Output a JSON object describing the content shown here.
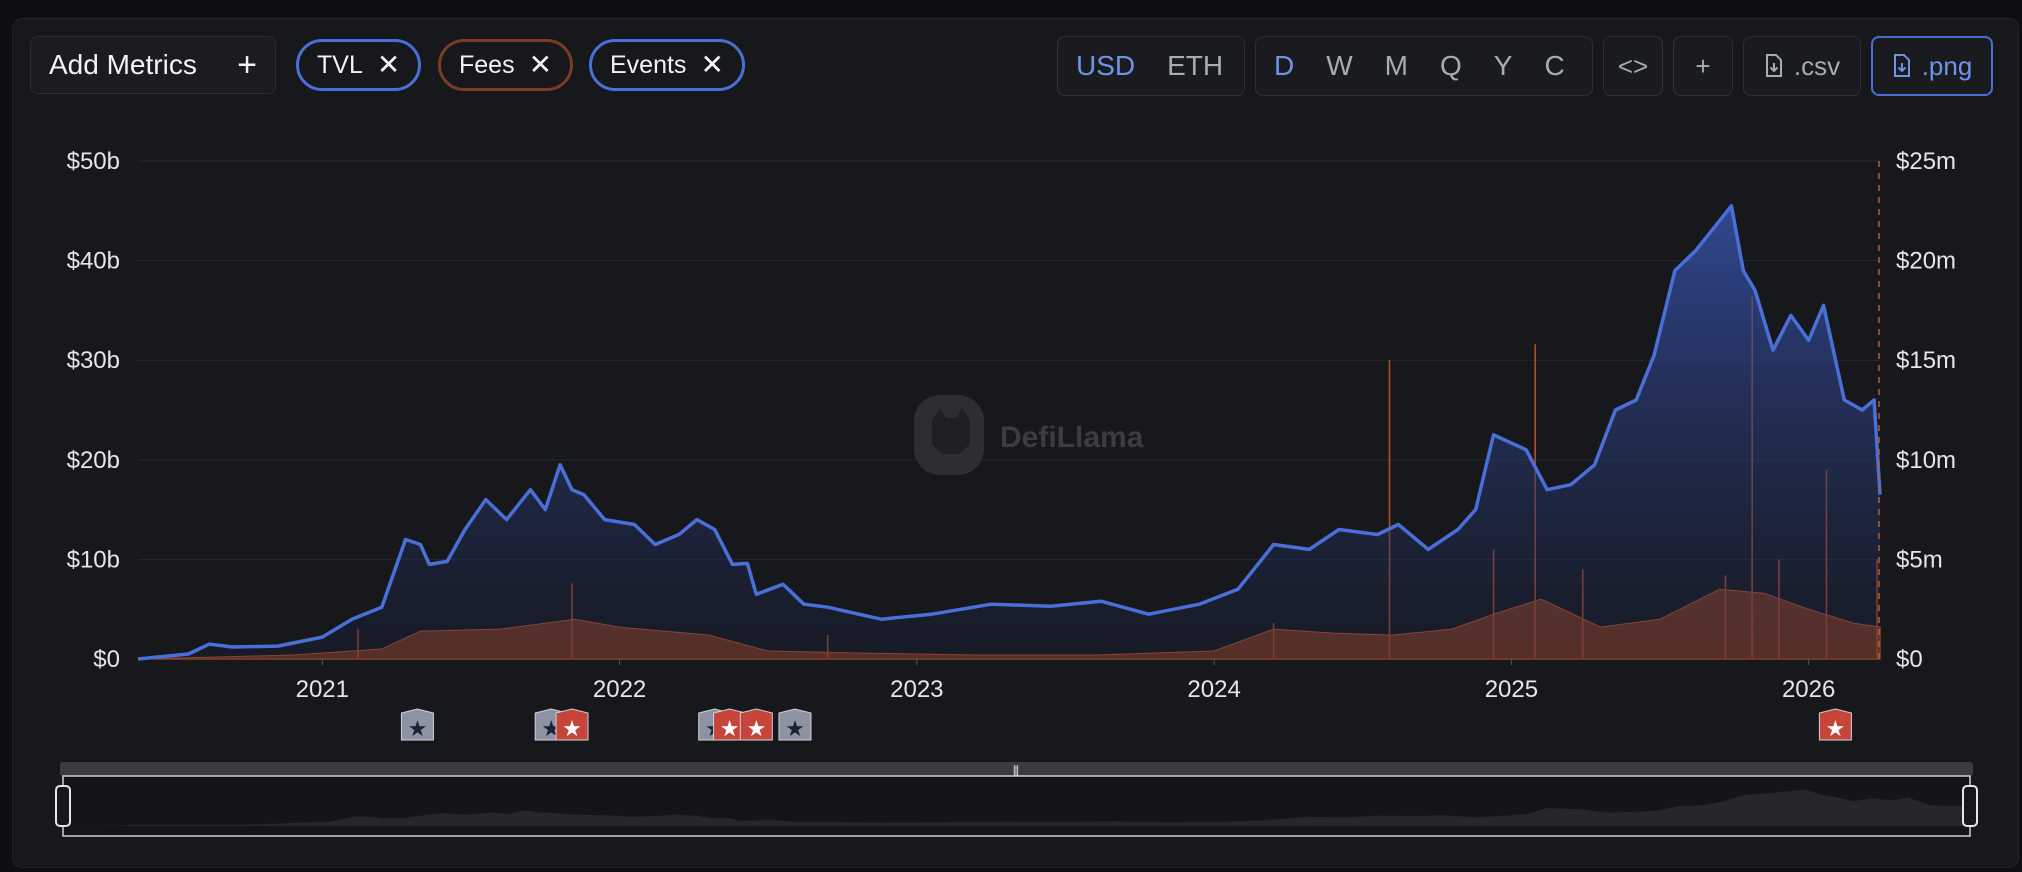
{
  "toolbar": {
    "add_metrics_label": "Add Metrics",
    "add_metrics_icon": "plus-icon",
    "metric_pills": [
      {
        "label": "TVL",
        "color": "#4a6fd9"
      },
      {
        "label": "Fees",
        "color": "#7a3d24"
      },
      {
        "label": "Events",
        "color": "#4a6fd9"
      }
    ],
    "currency": {
      "options": [
        "USD",
        "ETH"
      ],
      "selected": "USD"
    },
    "intervals": {
      "options": [
        "D",
        "W",
        "M",
        "Q",
        "Y",
        "C"
      ],
      "selected": "D"
    },
    "embed_label": "<>",
    "add_label": "+",
    "csv_label": ".csv",
    "png_label": ".png",
    "accent": "#6f93e8"
  },
  "watermark": "DefiLlama",
  "events_markers": [
    {
      "date": 2021.32,
      "kind": "gray"
    },
    {
      "date": 2021.77,
      "kind": "gray"
    },
    {
      "date": 2021.84,
      "kind": "red"
    },
    {
      "date": 2022.32,
      "kind": "gray"
    },
    {
      "date": 2022.37,
      "kind": "red"
    },
    {
      "date": 2022.46,
      "kind": "red"
    },
    {
      "date": 2022.59,
      "kind": "gray"
    },
    {
      "date": 2026.09,
      "kind": "red"
    }
  ],
  "chart_data": {
    "type": "area",
    "x_ticks": [
      "2021",
      "2022",
      "2023",
      "2024",
      "2025",
      "2026"
    ],
    "y_left_ticks": [
      "$0",
      "$10b",
      "$20b",
      "$30b",
      "$40b",
      "$50b"
    ],
    "y_right_ticks": [
      "$0",
      "$5m",
      "$10m",
      "$15m",
      "$20m",
      "$25m"
    ],
    "y_left_range": [
      0,
      50
    ],
    "y_right_range": [
      0,
      25
    ],
    "grid": true,
    "series": [
      {
        "name": "TVL",
        "axis": "left",
        "unit": "USD billions",
        "color": "#4a6fd9",
        "x": [
          2020.38,
          2020.55,
          2020.62,
          2020.7,
          2020.85,
          2021.0,
          2021.1,
          2021.2,
          2021.28,
          2021.33,
          2021.36,
          2021.42,
          2021.48,
          2021.55,
          2021.62,
          2021.7,
          2021.75,
          2021.8,
          2021.84,
          2021.88,
          2021.95,
          2022.05,
          2022.12,
          2022.2,
          2022.26,
          2022.32,
          2022.38,
          2022.43,
          2022.46,
          2022.55,
          2022.62,
          2022.7,
          2022.88,
          2023.05,
          2023.25,
          2023.45,
          2023.62,
          2023.78,
          2023.95,
          2024.08,
          2024.2,
          2024.32,
          2024.42,
          2024.55,
          2024.62,
          2024.72,
          2024.82,
          2024.88,
          2024.94,
          2025.05,
          2025.12,
          2025.2,
          2025.28,
          2025.35,
          2025.42,
          2025.48,
          2025.55,
          2025.62,
          2025.7,
          2025.74,
          2025.78,
          2025.82,
          2025.88,
          2025.94,
          2026.0,
          2026.05,
          2026.12,
          2026.18,
          2026.22,
          2026.24
        ],
        "values": [
          0,
          0.5,
          1.5,
          1.2,
          1.3,
          2.2,
          4,
          5.2,
          12,
          11.5,
          9.5,
          9.8,
          13,
          16,
          14,
          17,
          15,
          19.5,
          17,
          16.5,
          14,
          13.5,
          11.5,
          12.5,
          14,
          13,
          9.5,
          9.6,
          6.5,
          7.5,
          5.5,
          5.2,
          4,
          4.5,
          5.5,
          5.3,
          5.8,
          4.5,
          5.5,
          7,
          11.5,
          11,
          13,
          12.5,
          13.5,
          11,
          13,
          15,
          22.5,
          21,
          17,
          17.5,
          19.5,
          25,
          26,
          30.5,
          39,
          41,
          44,
          45.5,
          39,
          37,
          31,
          34.5,
          32,
          35.5,
          26,
          25,
          26,
          16.5
        ]
      },
      {
        "name": "Fees",
        "axis": "right",
        "unit": "USD millions",
        "color": "#c2582f",
        "x": [
          2020.38,
          2020.9,
          2021.2,
          2021.33,
          2021.6,
          2021.85,
          2022.0,
          2022.3,
          2022.5,
          2022.8,
          2023.2,
          2023.6,
          2024.0,
          2024.2,
          2024.4,
          2024.6,
          2024.8,
          2024.95,
          2025.1,
          2025.3,
          2025.5,
          2025.7,
          2025.85,
          2026.0,
          2026.15,
          2026.24
        ],
        "values": [
          0,
          0.2,
          0.5,
          1.4,
          1.5,
          2.0,
          1.6,
          1.2,
          0.4,
          0.3,
          0.2,
          0.2,
          0.4,
          1.5,
          1.3,
          1.2,
          1.5,
          2.3,
          3.0,
          1.6,
          2.0,
          3.5,
          3.3,
          2.5,
          1.8,
          1.6
        ]
      }
    ],
    "fees_spikes": [
      {
        "x": 2021.12,
        "value": 1.5
      },
      {
        "x": 2021.84,
        "value": 3.8
      },
      {
        "x": 2022.7,
        "value": 1.2
      },
      {
        "x": 2024.2,
        "value": 1.8
      },
      {
        "x": 2024.59,
        "value": 15
      },
      {
        "x": 2024.94,
        "value": 5.5
      },
      {
        "x": 2025.08,
        "value": 15.8
      },
      {
        "x": 2025.24,
        "value": 4.5
      },
      {
        "x": 2025.72,
        "value": 4.2
      },
      {
        "x": 2025.81,
        "value": 18.2
      },
      {
        "x": 2025.9,
        "value": 5
      },
      {
        "x": 2026.06,
        "value": 9.5
      },
      {
        "x": 2026.23,
        "value": 5
      }
    ]
  }
}
